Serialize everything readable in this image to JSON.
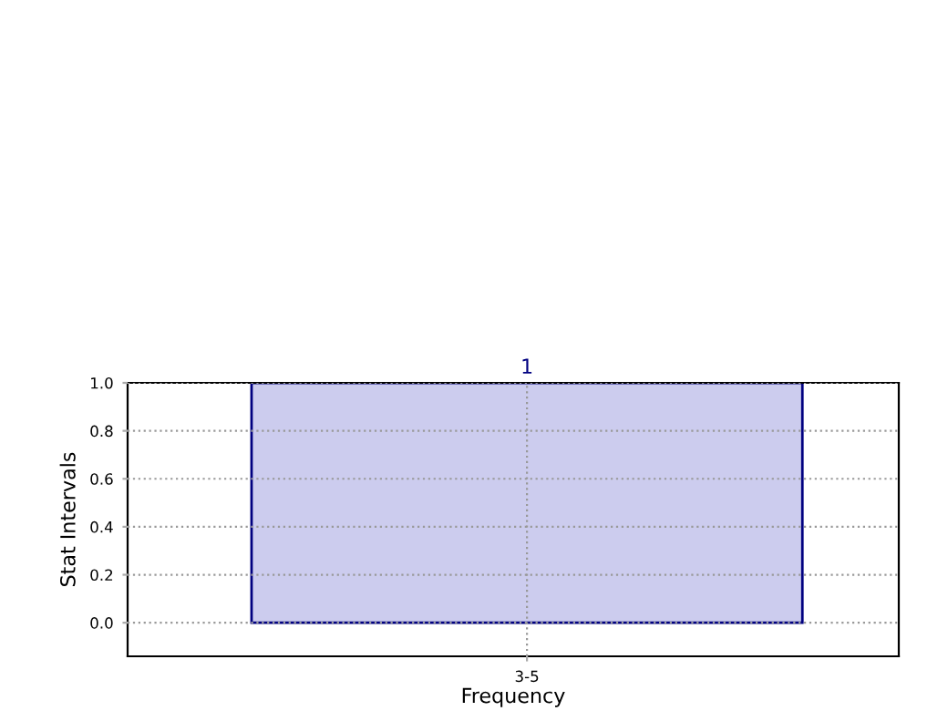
{
  "chart_data": {
    "type": "bar",
    "xlabel": "Frequency",
    "ylabel": "Stat Intervals",
    "categories": [
      "3-5"
    ],
    "series": [
      {
        "color": "#ccccee",
        "values": [
          1
        ]
      }
    ],
    "data_labels": true,
    "ylim": [
      -0.14,
      1.0
    ],
    "yticks": [
      {
        "value": 0,
        "label": "0.0"
      },
      0.2,
      0.4,
      0.6,
      0.8,
      {
        "value": 1,
        "label": "1.0"
      }
    ],
    "grid": true
  }
}
